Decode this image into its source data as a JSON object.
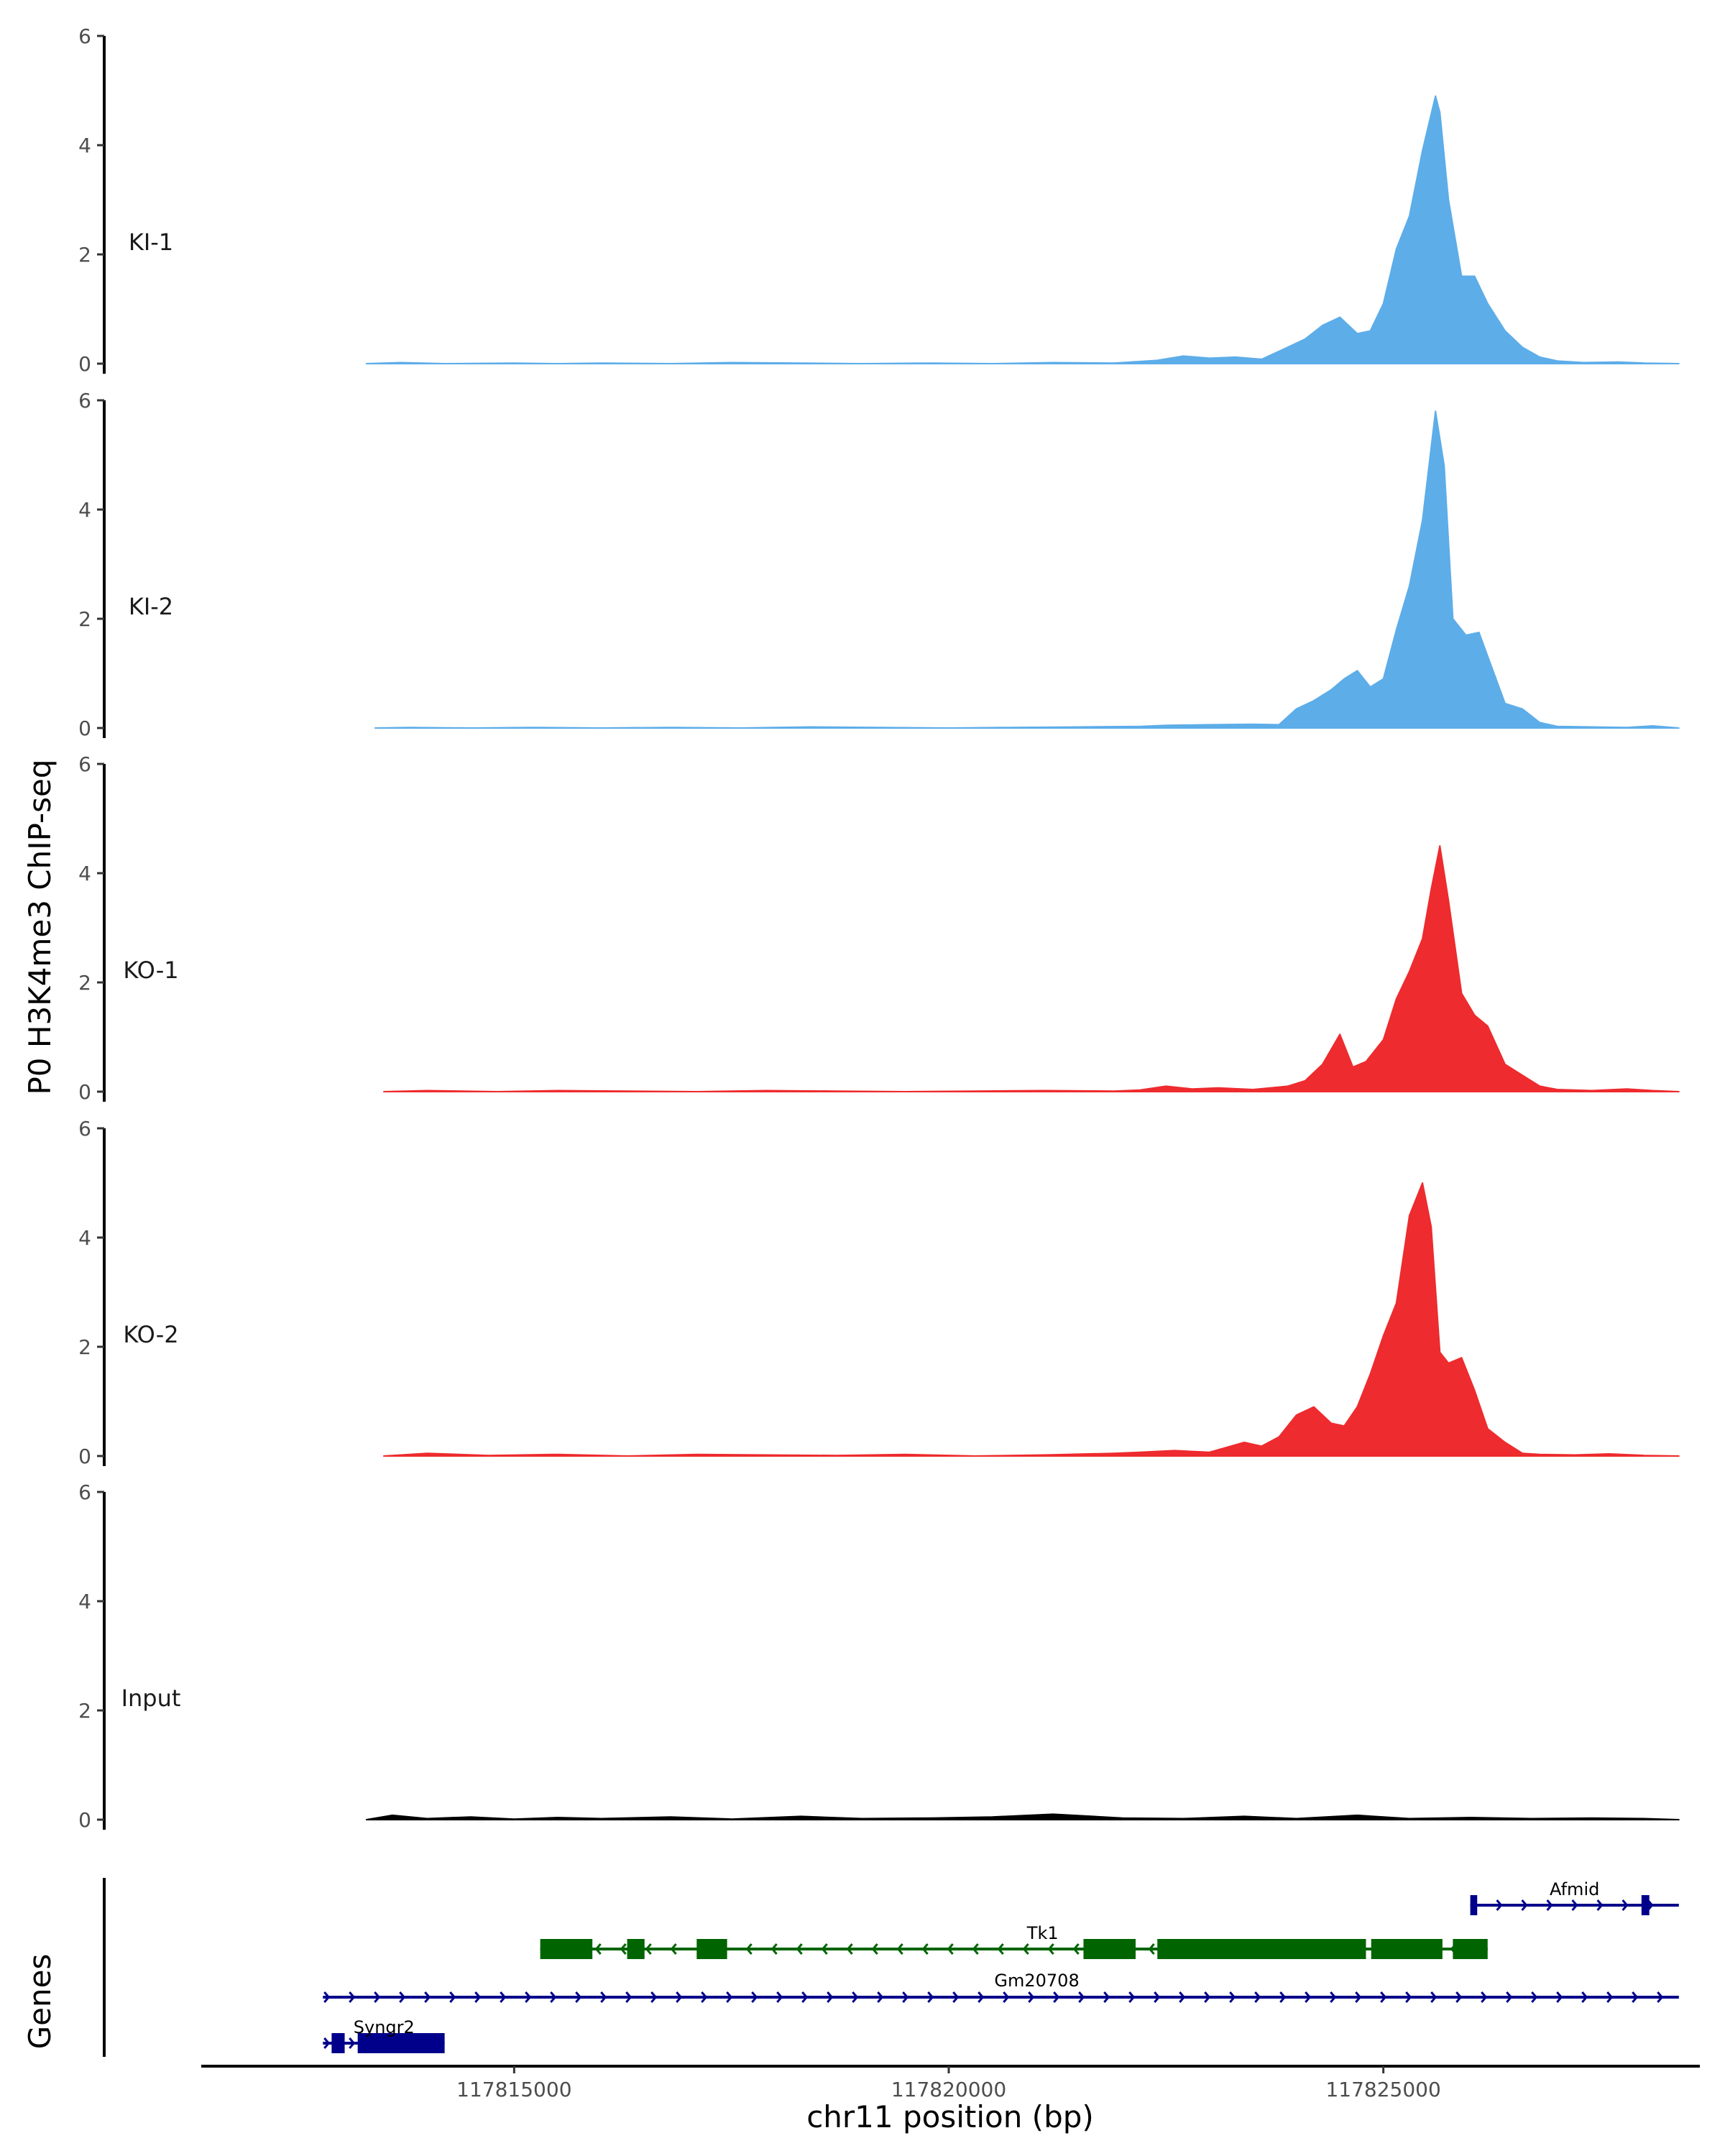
{
  "chart_data": {
    "type": "area",
    "ylabel": "P0 H3K4me3 ChIP-seq",
    "xlabel": "chr11 position (bp)",
    "gene_track_label": "Genes",
    "xlim": [
      117811400,
      117828600
    ],
    "ylim": [
      0,
      6
    ],
    "y_ticks": [
      "0",
      "2",
      "4",
      "6"
    ],
    "x_ticks": [
      {
        "value": 117815000,
        "label": "117815000"
      },
      {
        "value": 117820000,
        "label": "117820000"
      },
      {
        "value": 117825000,
        "label": "117825000"
      }
    ],
    "colors": {
      "KI": "#5dade9",
      "KO": "#ee2b2e",
      "Input": "#000000",
      "gene_plus": "#00008b",
      "gene_minus": "#006400"
    },
    "series": [
      {
        "name": "KI-1",
        "color": "#5dade9",
        "x": [
          117813300,
          117813700,
          117814200,
          117815000,
          117815500,
          117816000,
          117816800,
          117817500,
          117818300,
          117819000,
          117819800,
          117820500,
          117821200,
          117821900,
          117822400,
          117822700,
          117823000,
          117823300,
          117823600,
          117823900,
          117824100,
          117824300,
          117824500,
          117824700,
          117824850,
          117825000,
          117825150,
          117825300,
          117825450,
          117825600,
          117825650,
          117825750,
          117825900,
          117826050,
          117826200,
          117826400,
          117826600,
          117826800,
          117827000,
          117827300,
          117827700,
          117828000,
          117828400
        ],
        "y": [
          0,
          0.02,
          0,
          0.01,
          0,
          0.01,
          0,
          0.02,
          0.01,
          0,
          0.01,
          0,
          0.02,
          0.01,
          0.06,
          0.14,
          0.1,
          0.12,
          0.08,
          0.3,
          0.45,
          0.7,
          0.85,
          0.55,
          0.6,
          1.1,
          2.1,
          2.7,
          3.9,
          4.9,
          4.6,
          3.0,
          1.6,
          1.6,
          1.1,
          0.6,
          0.3,
          0.12,
          0.05,
          0.02,
          0.03,
          0.01,
          0.0
        ]
      },
      {
        "name": "KI-2",
        "color": "#5dade9",
        "x": [
          117813400,
          117813800,
          117814500,
          117815200,
          117816000,
          117816800,
          117817600,
          117818400,
          117819200,
          117820000,
          117820700,
          117821500,
          117822200,
          117822500,
          117823000,
          117823500,
          117823800,
          117824000,
          117824200,
          117824400,
          117824550,
          117824700,
          117824850,
          117825000,
          117825150,
          117825300,
          117825450,
          117825600,
          117825700,
          117825800,
          117825950,
          117826100,
          117826250,
          117826400,
          117826600,
          117826800,
          117827000,
          117827400,
          117827800,
          117828100,
          117828400
        ],
        "y": [
          0,
          0.01,
          0,
          0.01,
          0,
          0.01,
          0,
          0.02,
          0.01,
          0,
          0.01,
          0.02,
          0.03,
          0.05,
          0.06,
          0.07,
          0.06,
          0.35,
          0.5,
          0.7,
          0.9,
          1.05,
          0.75,
          0.9,
          1.8,
          2.6,
          3.8,
          5.8,
          4.8,
          2.0,
          1.7,
          1.75,
          1.1,
          0.45,
          0.35,
          0.1,
          0.03,
          0.02,
          0.01,
          0.04,
          0.0
        ]
      },
      {
        "name": "KO-1",
        "color": "#ee2b2e",
        "x": [
          117813500,
          117814000,
          117814800,
          117815500,
          117816300,
          117817100,
          117817900,
          117818700,
          117819500,
          117820300,
          117821100,
          117821900,
          117822200,
          117822500,
          117822800,
          117823100,
          117823500,
          117823900,
          117824100,
          117824300,
          117824500,
          117824650,
          117824800,
          117825000,
          117825150,
          117825300,
          117825450,
          117825550,
          117825650,
          117825750,
          117825900,
          117826050,
          117826200,
          117826400,
          117826600,
          117826800,
          117827000,
          117827400,
          117827800,
          117828100,
          117828400
        ],
        "y": [
          0,
          0.02,
          0,
          0.02,
          0.01,
          0,
          0.02,
          0.01,
          0,
          0.01,
          0.02,
          0.01,
          0.03,
          0.1,
          0.05,
          0.07,
          0.04,
          0.1,
          0.2,
          0.5,
          1.05,
          0.45,
          0.55,
          0.95,
          1.7,
          2.2,
          2.8,
          3.7,
          4.5,
          3.5,
          1.8,
          1.4,
          1.2,
          0.5,
          0.3,
          0.1,
          0.04,
          0.02,
          0.05,
          0.02,
          0.0
        ]
      },
      {
        "name": "KO-2",
        "color": "#ee2b2e",
        "x": [
          117813500,
          117814000,
          117814700,
          117815500,
          117816300,
          117817100,
          117817900,
          117818700,
          117819500,
          117820300,
          117821100,
          117821900,
          117822200,
          117822600,
          117823000,
          117823400,
          117823600,
          117823800,
          117824000,
          117824200,
          117824400,
          117824550,
          117824700,
          117824850,
          117825000,
          117825150,
          117825300,
          117825450,
          117825550,
          117825650,
          117825750,
          117825900,
          117826050,
          117826200,
          117826400,
          117826600,
          117826800,
          117827200,
          117827600,
          117828000,
          117828400
        ],
        "y": [
          0,
          0.05,
          0.01,
          0.03,
          0,
          0.03,
          0.02,
          0.01,
          0.03,
          0,
          0.02,
          0.05,
          0.07,
          0.1,
          0.07,
          0.25,
          0.18,
          0.35,
          0.75,
          0.9,
          0.6,
          0.55,
          0.9,
          1.5,
          2.2,
          2.8,
          4.4,
          5.0,
          4.2,
          1.9,
          1.7,
          1.8,
          1.2,
          0.5,
          0.25,
          0.05,
          0.03,
          0.02,
          0.04,
          0.01,
          0.0
        ]
      },
      {
        "name": "Input",
        "color": "#000000",
        "x": [
          117813300,
          117813600,
          117814000,
          117814500,
          117815000,
          117815500,
          117816000,
          117816800,
          117817500,
          117818300,
          117819000,
          117819800,
          117820500,
          117821200,
          117822000,
          117822700,
          117823400,
          117824000,
          117824700,
          117825300,
          117826000,
          117826700,
          117827400,
          117828000,
          117828400
        ],
        "y": [
          0,
          0.08,
          0.02,
          0.05,
          0.01,
          0.04,
          0.02,
          0.05,
          0.01,
          0.06,
          0.02,
          0.03,
          0.05,
          0.1,
          0.03,
          0.02,
          0.06,
          0.02,
          0.08,
          0.02,
          0.04,
          0.02,
          0.03,
          0.02,
          0.0
        ]
      }
    ],
    "genes": [
      {
        "name": "Afmid",
        "strand": "+",
        "color": "#00008b",
        "start": 117826000,
        "end": 117828400,
        "exons": [
          [
            117826000,
            117826080
          ],
          [
            117827970,
            117828060
          ]
        ]
      },
      {
        "name": "Tk1",
        "strand": "-",
        "color": "#006400",
        "start": 117815300,
        "end": 117826200,
        "exons": [
          [
            117815300,
            117815900
          ],
          [
            117816300,
            117816500
          ],
          [
            117817100,
            117817450
          ],
          [
            117821550,
            117822150
          ],
          [
            117822400,
            117824800
          ],
          [
            117824860,
            117825680
          ],
          [
            117825800,
            117826200
          ]
        ]
      },
      {
        "name": "Gm20708",
        "strand": "+",
        "color": "#00008b",
        "start": 117812800,
        "end": 117828400,
        "exons": []
      },
      {
        "name": "Syngr2",
        "strand": "+",
        "color": "#00008b",
        "start": 117812800,
        "end": 117814200,
        "exons": [
          [
            117812900,
            117813050
          ],
          [
            117813200,
            117814200
          ]
        ]
      }
    ]
  }
}
